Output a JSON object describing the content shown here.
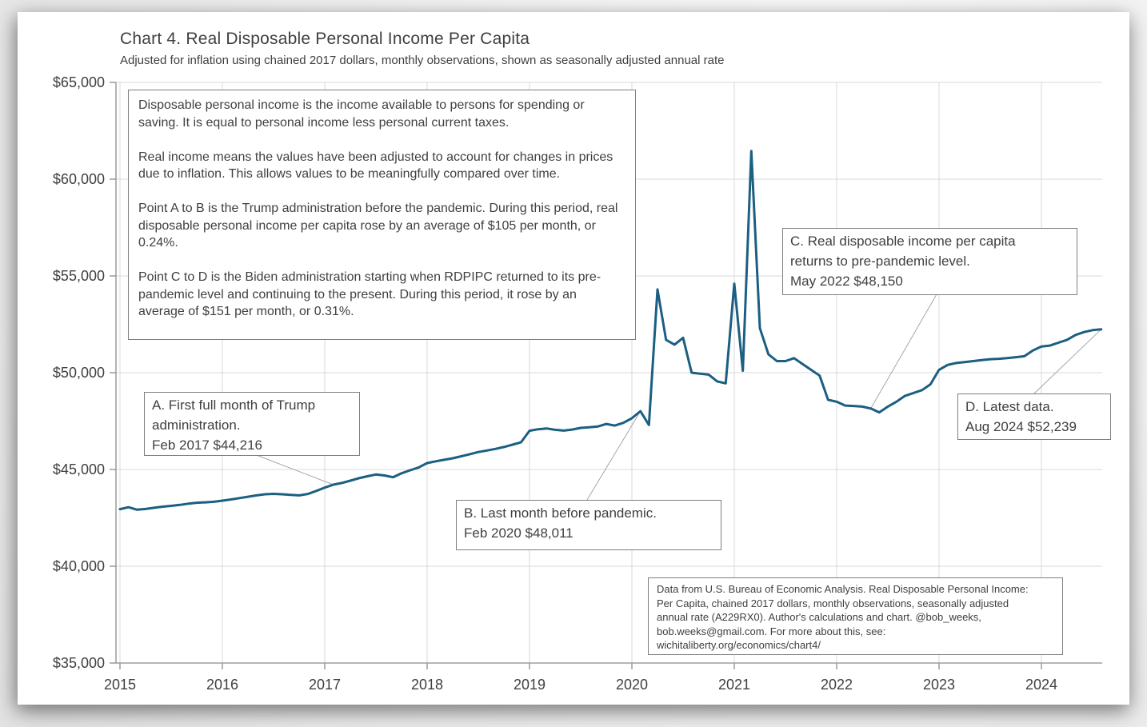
{
  "header": {
    "title": "Chart 4. Real Disposable Personal Income Per Capita",
    "subtitle": "Adjusted for inflation using chained 2017 dollars, monthly observations, shown as seasonally adjusted annual rate"
  },
  "description_box": {
    "paragraphs": [
      "Disposable personal income is the income available to persons for spending or saving. It is equal to personal income less personal current taxes.",
      "Real income means the values have been adjusted to account for changes in prices due to inflation. This allows values to be meaningfully compared over time.",
      "Point A to B is the Trump administration before the pandemic. During this period, real disposable personal income per capita rose by an average of $105 per month, or 0.24%.",
      "Point C to D is the Biden administration starting when RDPIPC returned to its pre-pandemic level and continuing to the present. During this period, it rose by an average of $151 per month, or 0.31%."
    ]
  },
  "annotations": {
    "a": {
      "lines": [
        "A. First full month of Trump",
        "administration.",
        "Feb 2017  $44,216"
      ],
      "date": "Feb 2017",
      "value": 44216,
      "anchor_month_index": 25
    },
    "b": {
      "lines": [
        "B. Last month before pandemic.",
        "Feb 2020  $48,011"
      ],
      "date": "Feb 2020",
      "value": 48011,
      "anchor_month_index": 61
    },
    "c": {
      "lines": [
        "C. Real disposable income per capita",
        "returns to pre-pandemic level.",
        "May 2022  $48,150"
      ],
      "date": "May 2022",
      "value": 48150,
      "anchor_month_index": 88
    },
    "d": {
      "lines": [
        "D. Latest data.",
        "Aug 2024  $52,239"
      ],
      "date": "Aug 2024",
      "value": 52239,
      "anchor_month_index": 115
    }
  },
  "source_box": {
    "lines": [
      "Data from U.S. Bureau of Economic Analysis. Real Disposable Personal Income:",
      "Per Capita, chained 2017 dollars, monthly observations, seasonally adjusted",
      "annual rate (A229RX0). Author's calculations and chart. @bob_weeks,",
      "bob.weeks@gmail.com. For more about this, see:",
      "wichitaliberty.org/economics/chart4/"
    ]
  },
  "colors": {
    "line": "#1b5f82",
    "grid": "#d9d9d9",
    "axis": "#8c8c8c",
    "text": "#404040",
    "box_border": "#7f7f7f",
    "leader": "#a6a6a6",
    "card": "#ffffff"
  },
  "chart_data": {
    "type": "line",
    "title": "Chart 4. Real Disposable Personal Income Per Capita",
    "subtitle": "Adjusted for inflation using chained 2017 dollars, monthly observations, shown as seasonally adjusted annual rate",
    "frequency": "monthly",
    "x_start": "2015-01",
    "x_end": "2024-08",
    "x_tick_labels": [
      "2015",
      "2016",
      "2017",
      "2018",
      "2019",
      "2020",
      "2021",
      "2022",
      "2023",
      "2024"
    ],
    "y_tick_values": [
      35000,
      40000,
      45000,
      50000,
      55000,
      60000,
      65000
    ],
    "y_tick_labels": [
      "$35,000",
      "$40,000",
      "$45,000",
      "$50,000",
      "$55,000",
      "$60,000",
      "$65,000"
    ],
    "ylim": [
      35000,
      65000
    ],
    "grid": true,
    "legend": "none",
    "series": [
      {
        "name": "Real Disposable Personal Income Per Capita (A229RX0)",
        "values": [
          42950,
          43050,
          42920,
          42960,
          43020,
          43080,
          43120,
          43170,
          43230,
          43280,
          43300,
          43330,
          43390,
          43450,
          43520,
          43590,
          43660,
          43720,
          43740,
          43720,
          43690,
          43660,
          43730,
          43890,
          44060,
          44216,
          44300,
          44420,
          44550,
          44650,
          44740,
          44690,
          44600,
          44800,
          44960,
          45100,
          45330,
          45420,
          45500,
          45580,
          45680,
          45790,
          45900,
          45980,
          46060,
          46160,
          46280,
          46400,
          47000,
          47080,
          47120,
          47050,
          47010,
          47060,
          47150,
          47180,
          47220,
          47350,
          47270,
          47410,
          47650,
          48011,
          47300,
          54300,
          51700,
          51450,
          51800,
          50000,
          49950,
          49900,
          49550,
          49450,
          54600,
          50100,
          61450,
          52300,
          50950,
          50600,
          50600,
          50750,
          50450,
          50150,
          49850,
          48600,
          48500,
          48300,
          48280,
          48250,
          48150,
          47950,
          48250,
          48500,
          48800,
          48950,
          49100,
          49400,
          50150,
          50400,
          50500,
          50550,
          50600,
          50650,
          50700,
          50720,
          50750,
          50800,
          50850,
          51150,
          51350,
          51400,
          51550,
          51700,
          51950,
          52100,
          52200,
          52239
        ]
      }
    ],
    "key_points": [
      {
        "label": "A",
        "date": "Feb 2017",
        "value": 44216
      },
      {
        "label": "B",
        "date": "Feb 2020",
        "value": 48011
      },
      {
        "label": "C",
        "date": "May 2022",
        "value": 48150
      },
      {
        "label": "D",
        "date": "Aug 2024",
        "value": 52239
      }
    ]
  }
}
